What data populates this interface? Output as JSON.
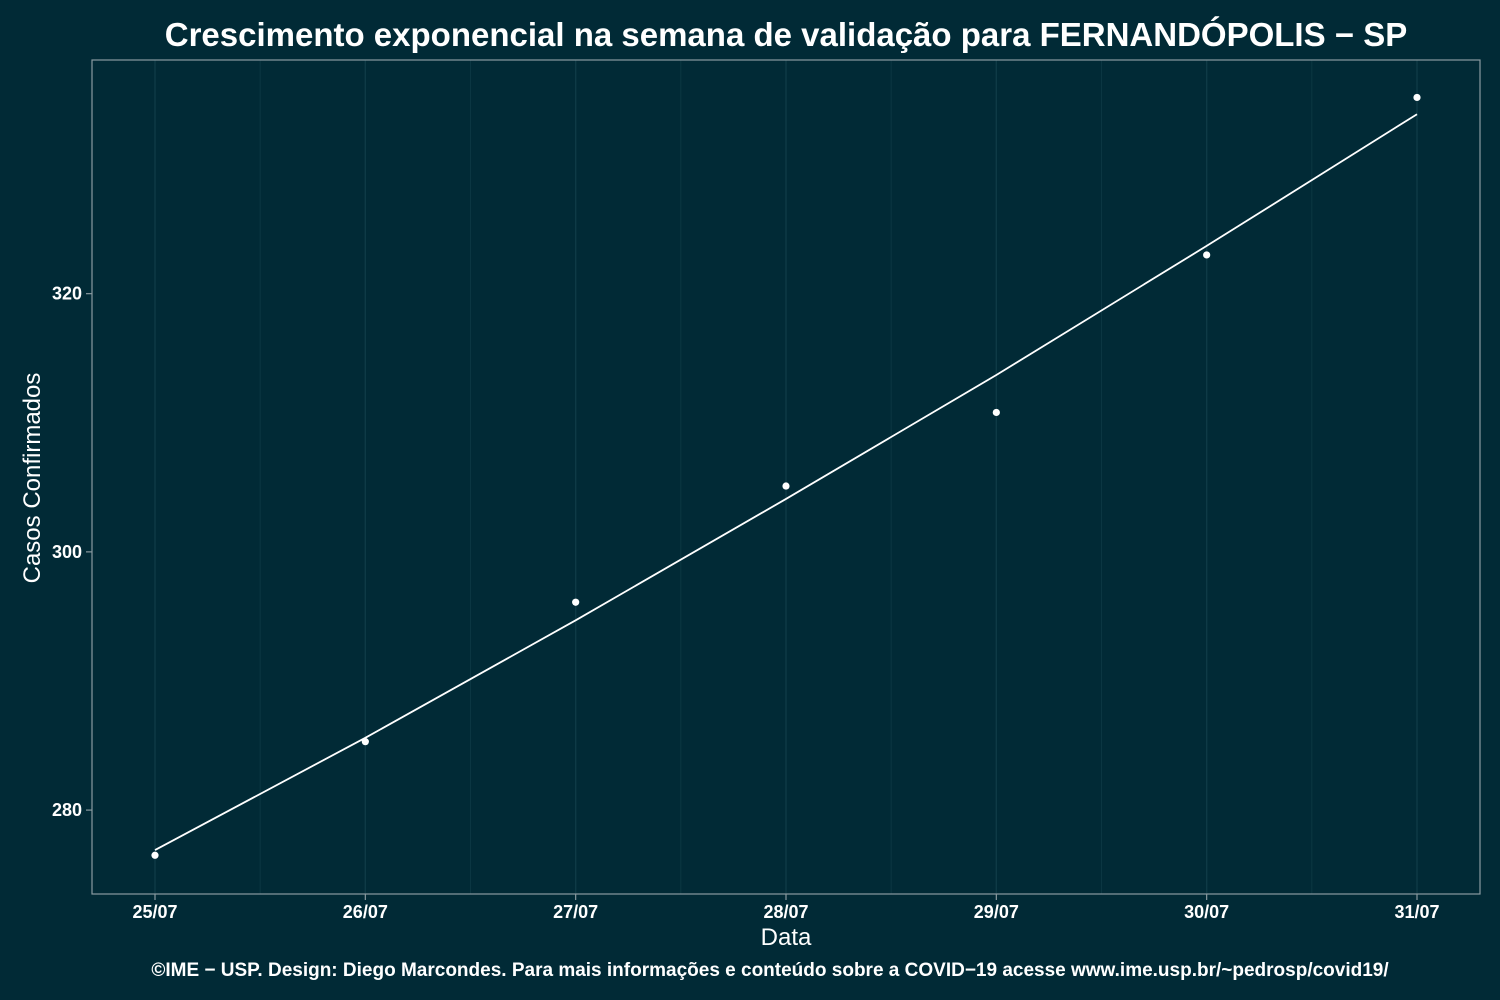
{
  "chart_data": {
    "type": "line",
    "title": "Crescimento exponencial na semana de validação para FERNANDÓPOLIS − SP",
    "xlabel": "Data",
    "ylabel": "Casos Confirmados",
    "categories": [
      "25/07",
      "26/07",
      "27/07",
      "28/07",
      "29/07",
      "30/07",
      "31/07"
    ],
    "series": [
      {
        "kind": "points",
        "values": [
          276.5,
          285.3,
          296.1,
          305.1,
          310.8,
          323.0,
          335.2
        ]
      },
      {
        "kind": "fit",
        "values": [
          276.9,
          285.6,
          294.7,
          304.1,
          313.7,
          323.7,
          333.9
        ]
      }
    ],
    "yticks": [
      280,
      300,
      320
    ],
    "ylim": [
      273.5,
      338.1
    ],
    "grid": true,
    "colors": {
      "background": "#012a36",
      "grid": "#0e3a46",
      "border": "#8a9aa0",
      "ink": "#ffffff"
    }
  },
  "caption": "©IME − USP. Design: Diego Marcondes. Para mais informações e conteúdo sobre a COVID−19 acesse www.ime.usp.br/~pedrosp/covid19/"
}
